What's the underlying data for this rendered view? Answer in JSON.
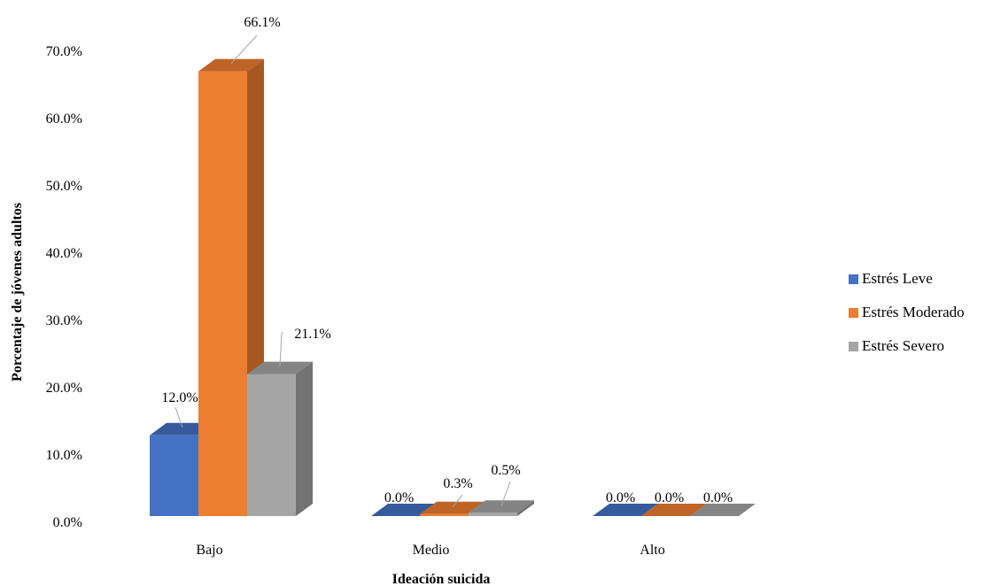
{
  "chart_data": {
    "type": "bar",
    "title": "",
    "xlabel": "Ideación suicida",
    "ylabel": "Porcentaje de jóvenes adultos",
    "ylim": [
      0,
      70
    ],
    "yticks": [
      "0.0%",
      "10.0%",
      "20.0%",
      "30.0%",
      "40.0%",
      "50.0%",
      "60.0%",
      "70.0%"
    ],
    "categories": [
      "Bajo",
      "Medio",
      "Alto"
    ],
    "series": [
      {
        "name": "Estrés Leve",
        "values": [
          12.0,
          0.0,
          0.0
        ],
        "labels": [
          "12.0%",
          "0.0%",
          "0.0%"
        ],
        "color": "#4472C4"
      },
      {
        "name": "Estrés Moderado",
        "values": [
          66.1,
          0.3,
          0.0
        ],
        "labels": [
          "66.1%",
          "0.3%",
          "0.0%"
        ],
        "color": "#ED7D31"
      },
      {
        "name": "Estrés Severo",
        "values": [
          21.1,
          0.5,
          0.0
        ],
        "labels": [
          "21.1%",
          "0.5%",
          "0.0%"
        ],
        "color": "#A5A5A5"
      }
    ],
    "style": "3d-clustered-column",
    "grid": false,
    "legend": "right"
  }
}
